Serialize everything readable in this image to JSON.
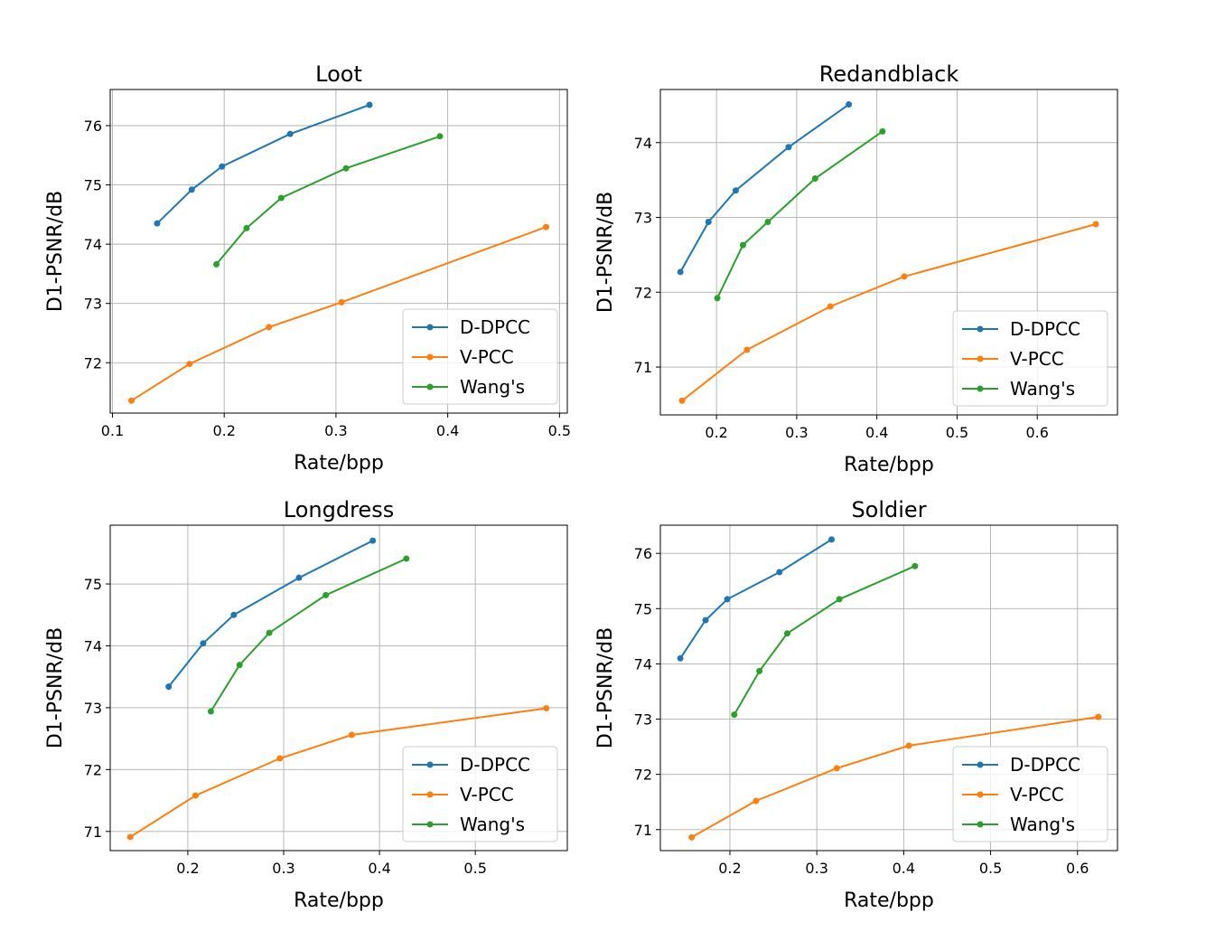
{
  "colors": {
    "D-DPCC": "#1f77b4",
    "V-PCC": "#ff7f0e",
    "Wang's": "#2ca02c",
    "grid": "#b0b0b0"
  },
  "chart_data": [
    {
      "type": "line",
      "title": "Loot",
      "xlabel": "Rate/bpp",
      "ylabel": "D1-PSNR/dB",
      "xlim": [
        0.098,
        0.507
      ],
      "ylim": [
        71.15,
        76.61
      ],
      "x_ticks": [
        0.1,
        0.2,
        0.3,
        0.4,
        0.5
      ],
      "y_ticks": [
        72,
        73,
        74,
        75,
        76
      ],
      "grid": true,
      "legend": "lower-right",
      "series": [
        {
          "name": "D-DPCC",
          "x": [
            0.14,
            0.171,
            0.198,
            0.259,
            0.33
          ],
          "y": [
            74.35,
            74.92,
            75.31,
            75.86,
            76.35
          ]
        },
        {
          "name": "V-PCC",
          "x": [
            0.117,
            0.169,
            0.24,
            0.305,
            0.488
          ],
          "y": [
            71.36,
            71.98,
            72.6,
            73.02,
            74.29
          ]
        },
        {
          "name": "Wang's",
          "x": [
            0.193,
            0.22,
            0.251,
            0.309,
            0.393
          ],
          "y": [
            73.66,
            74.27,
            74.78,
            75.28,
            75.82
          ]
        }
      ]
    },
    {
      "type": "line",
      "title": "Redandblack",
      "xlabel": "Rate/bpp",
      "ylabel": "D1-PSNR/dB",
      "xlim": [
        0.13,
        0.7
      ],
      "ylim": [
        70.36,
        74.71
      ],
      "x_ticks": [
        0.2,
        0.3,
        0.4,
        0.5,
        0.6
      ],
      "y_ticks": [
        71,
        72,
        73,
        74
      ],
      "grid": true,
      "legend": "lower-right",
      "series": [
        {
          "name": "D-DPCC",
          "x": [
            0.155,
            0.19,
            0.224,
            0.29,
            0.365
          ],
          "y": [
            72.27,
            72.94,
            73.36,
            73.94,
            74.51
          ]
        },
        {
          "name": "V-PCC",
          "x": [
            0.157,
            0.238,
            0.342,
            0.434,
            0.673
          ],
          "y": [
            70.55,
            71.23,
            71.81,
            72.21,
            72.91
          ]
        },
        {
          "name": "Wang's",
          "x": [
            0.201,
            0.233,
            0.264,
            0.323,
            0.407
          ],
          "y": [
            71.92,
            72.63,
            72.94,
            73.52,
            74.15
          ]
        }
      ]
    },
    {
      "type": "line",
      "title": "Longdress",
      "xlabel": "Rate/bpp",
      "ylabel": "D1-PSNR/dB",
      "xlim": [
        0.119,
        0.596
      ],
      "ylim": [
        70.69,
        75.95
      ],
      "x_ticks": [
        0.2,
        0.3,
        0.4,
        0.5
      ],
      "y_ticks": [
        71,
        72,
        73,
        74,
        75
      ],
      "grid": true,
      "legend": "lower-right",
      "series": [
        {
          "name": "D-DPCC",
          "x": [
            0.18,
            0.216,
            0.248,
            0.316,
            0.393
          ],
          "y": [
            73.34,
            74.04,
            74.5,
            75.1,
            75.7
          ]
        },
        {
          "name": "V-PCC",
          "x": [
            0.14,
            0.208,
            0.296,
            0.371,
            0.574
          ],
          "y": [
            70.91,
            71.58,
            72.18,
            72.56,
            72.99
          ]
        },
        {
          "name": "Wang's",
          "x": [
            0.224,
            0.254,
            0.285,
            0.344,
            0.428
          ],
          "y": [
            72.94,
            73.69,
            74.21,
            74.82,
            75.41
          ]
        }
      ]
    },
    {
      "type": "line",
      "title": "Soldier",
      "xlabel": "Rate/bpp",
      "ylabel": "D1-PSNR/dB",
      "xlim": [
        0.12,
        0.646
      ],
      "ylim": [
        70.62,
        76.51
      ],
      "x_ticks": [
        0.2,
        0.3,
        0.4,
        0.5,
        0.6
      ],
      "y_ticks": [
        71,
        72,
        73,
        74,
        75,
        76
      ],
      "grid": true,
      "legend": "lower-right",
      "series": [
        {
          "name": "D-DPCC",
          "x": [
            0.143,
            0.172,
            0.197,
            0.257,
            0.317
          ],
          "y": [
            74.1,
            74.79,
            75.17,
            75.66,
            76.25
          ]
        },
        {
          "name": "V-PCC",
          "x": [
            0.156,
            0.23,
            0.323,
            0.406,
            0.624
          ],
          "y": [
            70.86,
            71.52,
            72.11,
            72.52,
            73.04
          ]
        },
        {
          "name": "Wang's",
          "x": [
            0.205,
            0.234,
            0.266,
            0.326,
            0.413
          ],
          "y": [
            73.08,
            73.87,
            74.55,
            75.17,
            75.77
          ]
        }
      ]
    }
  ]
}
